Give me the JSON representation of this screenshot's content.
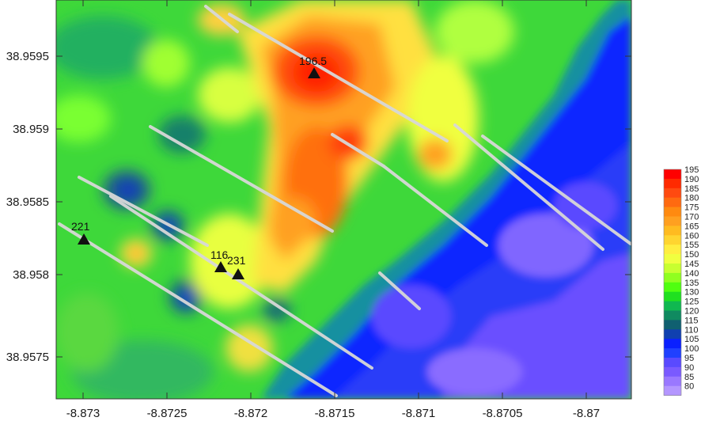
{
  "axes": {
    "x_ticks": [
      "-8.873",
      "-8.8725",
      "-8.872",
      "-8.8715",
      "-8.871",
      "-8.8705",
      "-8.87"
    ],
    "y_ticks": [
      "38.9595",
      "38.959",
      "38.9585",
      "38.958",
      "38.9575"
    ]
  },
  "colorbar": {
    "levels": [
      "195",
      "190",
      "185",
      "180",
      "175",
      "170",
      "165",
      "160",
      "155",
      "150",
      "145",
      "140",
      "135",
      "130",
      "125",
      "120",
      "115",
      "110",
      "105",
      "100",
      "95",
      "90",
      "85",
      "80"
    ],
    "colors": [
      "#ff0000",
      "#ff2a00",
      "#ff4a10",
      "#ff6a10",
      "#ff8a10",
      "#ffa020",
      "#ffbb20",
      "#ffd530",
      "#ffee40",
      "#f0ff40",
      "#c8ff30",
      "#90ff20",
      "#50ff10",
      "#20e020",
      "#10b850",
      "#108a60",
      "#106070",
      "#1040b0",
      "#0a20ff",
      "#2040ff",
      "#5a4aff",
      "#7a5aff",
      "#9a78ff",
      "#b496ff"
    ],
    "low_color": "#8c60f0"
  },
  "markers": [
    {
      "label": "196.5"
    },
    {
      "label": "221"
    },
    {
      "label": "116"
    },
    {
      "label": "231"
    }
  ]
}
